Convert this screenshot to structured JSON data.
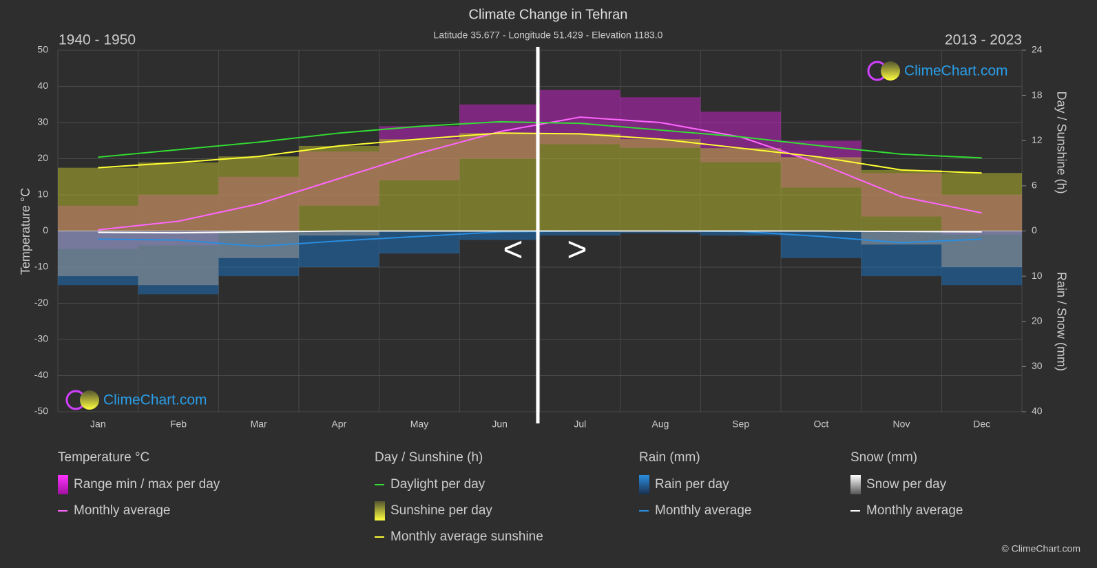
{
  "chart_data": {
    "type": "climate",
    "title": "Climate Change in Tehran",
    "subtitle": "Latitude 35.677 - Longitude 51.429 - Elevation 1183.0",
    "period_left": "1940 - 1950",
    "period_right": "2013 - 2023",
    "nav_prev": "<",
    "nav_next": ">",
    "watermark": "ClimeChart.com",
    "copyright": "© ClimeChart.com",
    "ylabel": "Temperature °C",
    "y2label": "Day / Sunshine (h)",
    "y3label": "Rain / Snow (mm)",
    "categories": [
      "Jan",
      "Feb",
      "Mar",
      "Apr",
      "May",
      "Jun",
      "Jul",
      "Aug",
      "Sep",
      "Oct",
      "Nov",
      "Dec"
    ],
    "ylim": [
      -50,
      50
    ],
    "yticks": [
      -50,
      -40,
      -30,
      -20,
      -10,
      0,
      10,
      20,
      30,
      40,
      50
    ],
    "y2lim": [
      0,
      24
    ],
    "y2ticks": [
      0,
      6,
      12,
      18,
      24
    ],
    "y3lim": [
      0,
      40
    ],
    "y3ticks": [
      0,
      10,
      20,
      30,
      40
    ],
    "grid": true,
    "groups": [
      {
        "title": "Temperature °C",
        "series": [
          {
            "name": "Range min / max per day",
            "kind": "range",
            "axis": "y",
            "color": "#e020e0",
            "max": [
              7,
              10,
              15,
              22,
              29,
              35,
              39,
              37,
              33,
              25,
              16,
              10
            ],
            "min": [
              -5,
              -4,
              0,
              7,
              14,
              20,
              24,
              23,
              19,
              12,
              4,
              -1
            ]
          },
          {
            "name": "Monthly average",
            "kind": "line",
            "axis": "y",
            "color": "#ff66ff",
            "values": [
              0.3,
              2.7,
              7.5,
              14.5,
              21.5,
              27.5,
              31.5,
              30,
              26,
              18.5,
              9.5,
              5
            ]
          }
        ]
      },
      {
        "title": "Day / Sunshine (h)",
        "series": [
          {
            "name": "Daylight per day",
            "kind": "line",
            "axis": "y2",
            "color": "#33dd33",
            "values": [
              9.8,
              10.8,
              11.8,
              13.0,
              13.9,
              14.5,
              14.3,
              13.4,
              12.5,
              11.3,
              10.2,
              9.7
            ]
          },
          {
            "name": "Sunshine per day",
            "kind": "bar",
            "axis": "y2",
            "color": "#b4b430",
            "values": [
              8.4,
              9.1,
              9.9,
              11.3,
              12.2,
              13.0,
              12.9,
              12.2,
              11.0,
              9.8,
              8.1,
              7.7
            ]
          },
          {
            "name": "Monthly average sunshine",
            "kind": "line",
            "axis": "y2",
            "color": "#ffff33",
            "values": [
              8.4,
              9.1,
              9.9,
              11.3,
              12.2,
              13.0,
              12.9,
              12.2,
              11.0,
              9.8,
              8.1,
              7.7
            ]
          }
        ]
      },
      {
        "title": "Rain (mm)",
        "series": [
          {
            "name": "Rain per day",
            "kind": "bar",
            "axis": "y3",
            "color": "#1e6fb8",
            "values": [
              12,
              14,
              10,
              8,
              5,
              2,
              1,
              0.5,
              1,
              6,
              10,
              12
            ]
          },
          {
            "name": "Monthly average",
            "kind": "line",
            "axis": "y3",
            "color": "#2a8ee0",
            "values": [
              1.8,
              2.0,
              3.4,
              2.2,
              1.2,
              0.2,
              0,
              0,
              0.1,
              1.2,
              2.6,
              1.8
            ]
          }
        ]
      },
      {
        "title": "Snow (mm)",
        "series": [
          {
            "name": "Snow per day",
            "kind": "bar",
            "axis": "y3",
            "color": "#9a9a9a",
            "values": [
              10,
              12,
              6,
              1,
              0,
              0,
              0,
              0,
              0,
              0,
              3,
              8
            ]
          },
          {
            "name": "Monthly average",
            "kind": "line",
            "axis": "y3",
            "color": "#ffffff",
            "values": [
              0.3,
              0.4,
              0.2,
              0,
              0,
              0,
              0,
              0,
              0,
              0,
              0.1,
              0.2
            ]
          }
        ]
      }
    ]
  }
}
